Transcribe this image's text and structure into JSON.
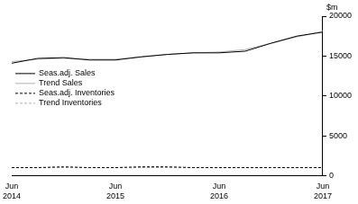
{
  "chart_data": {
    "type": "line",
    "ylabel": "$m",
    "categories": [
      "Jun 2014",
      null,
      null,
      null,
      "Jun 2015",
      null,
      null,
      null,
      "Jun 2016",
      null,
      null,
      null,
      "Jun 2017"
    ],
    "series": [
      {
        "name": "Seas.adj. Sales",
        "color": "#000000",
        "line_style": "solid",
        "values": [
          14100,
          14700,
          14800,
          14500,
          14500,
          14900,
          15200,
          15400,
          15400,
          15600,
          16600,
          17500,
          18000
        ]
      },
      {
        "name": "Trend Sales",
        "color": "#b0b0b0",
        "line_style": "solid",
        "values": [
          14300,
          14600,
          14700,
          14600,
          14600,
          14900,
          15200,
          15400,
          15500,
          15800,
          16600,
          17400,
          18100
        ]
      },
      {
        "name": "Seas.adj. Inventories",
        "color": "#000000",
        "line_style": "dashed",
        "values": [
          1000,
          1000,
          1100,
          1000,
          1000,
          1100,
          1100,
          1000,
          1000,
          1000,
          1000,
          1000,
          1000
        ]
      },
      {
        "name": "Trend Inventories",
        "color": "#b0b0b0",
        "line_style": "dashed",
        "values": [
          1000,
          1000,
          1000,
          1000,
          1000,
          1000,
          1000,
          1000,
          1000,
          1000,
          1000,
          1000,
          1000
        ]
      }
    ],
    "ylim": [
      0,
      20000
    ],
    "yticks": [
      0,
      5000,
      10000,
      15000,
      20000
    ],
    "grid": false,
    "legend": "upper left"
  }
}
